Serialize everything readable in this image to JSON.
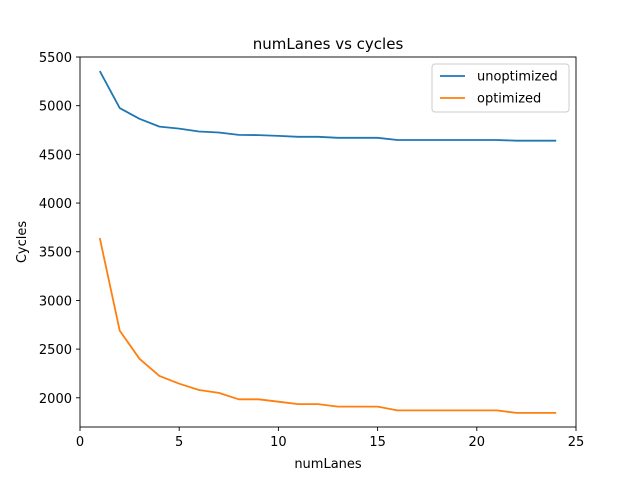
{
  "chart_data": {
    "type": "line",
    "title": "numLanes vs cycles",
    "xlabel": "numLanes",
    "ylabel": "Cycles",
    "xlim": [
      0,
      25
    ],
    "ylim": [
      1700,
      5500
    ],
    "xticks": [
      0,
      5,
      10,
      15,
      20,
      25
    ],
    "yticks": [
      2000,
      2500,
      3000,
      3500,
      4000,
      4500,
      5000,
      5500
    ],
    "grid": false,
    "legend_position": "top-right",
    "x": [
      1,
      2,
      3,
      4,
      5,
      6,
      7,
      8,
      9,
      10,
      11,
      12,
      13,
      14,
      15,
      16,
      17,
      18,
      19,
      20,
      21,
      22,
      23,
      24
    ],
    "series": [
      {
        "name": "unoptimized",
        "color": "#1f77b4",
        "values": [
          5355,
          4975,
          4865,
          4785,
          4765,
          4735,
          4725,
          4700,
          4698,
          4690,
          4680,
          4680,
          4670,
          4670,
          4670,
          4648,
          4648,
          4648,
          4648,
          4648,
          4648,
          4640,
          4640,
          4640
        ]
      },
      {
        "name": "optimized",
        "color": "#ff7f0e",
        "values": [
          3640,
          2690,
          2400,
          2225,
          2145,
          2080,
          2050,
          1985,
          1985,
          1960,
          1935,
          1935,
          1910,
          1910,
          1910,
          1870,
          1870,
          1870,
          1870,
          1870,
          1870,
          1845,
          1845,
          1845
        ]
      }
    ]
  }
}
